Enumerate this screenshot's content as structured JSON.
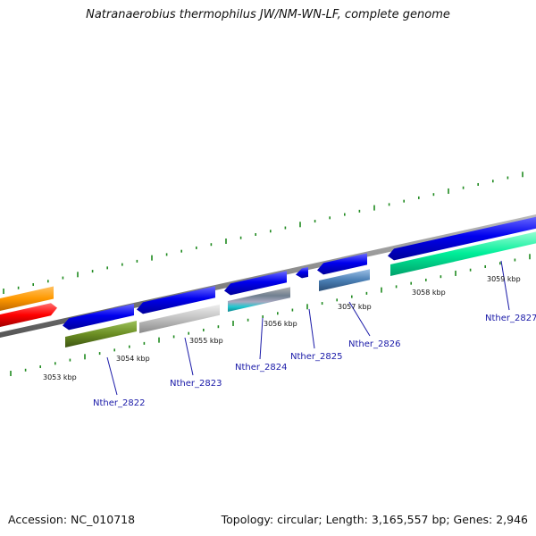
{
  "header": {
    "title": "Natranaerobius thermophilus JW/NM-WN-LF, complete genome"
  },
  "footer": {
    "accession": "Accession: NC_010718",
    "summary": "Topology: circular; Length: 3,165,557 bp; Genes: 2,946"
  },
  "ruler": {
    "ticks": [
      {
        "label": "3053 kbp"
      },
      {
        "label": "3054 kbp"
      },
      {
        "label": "3055 kbp"
      },
      {
        "label": "3056 kbp"
      },
      {
        "label": "3057 kbp"
      },
      {
        "label": "3058 kbp"
      },
      {
        "label": "3059 kbp"
      }
    ]
  },
  "genes": [
    {
      "label": "Nther_2822",
      "color": "#6b8e23"
    },
    {
      "label": "Nther_2823",
      "color": "#c0c0c0"
    },
    {
      "label": "Nther_2824",
      "color": "#20c8d0"
    },
    {
      "label": "Nther_2825",
      "color": "#0000ee"
    },
    {
      "label": "Nther_2826",
      "color": "#4a7fb5"
    },
    {
      "label": "Nther_2827",
      "color": "#00ee99"
    }
  ],
  "colors": {
    "cds": "#0000ee",
    "backbone": "#888888",
    "tick": "#1f8a1f",
    "label": "#1a1aa8",
    "orange": "#ff9900",
    "red": "#ff0000"
  }
}
